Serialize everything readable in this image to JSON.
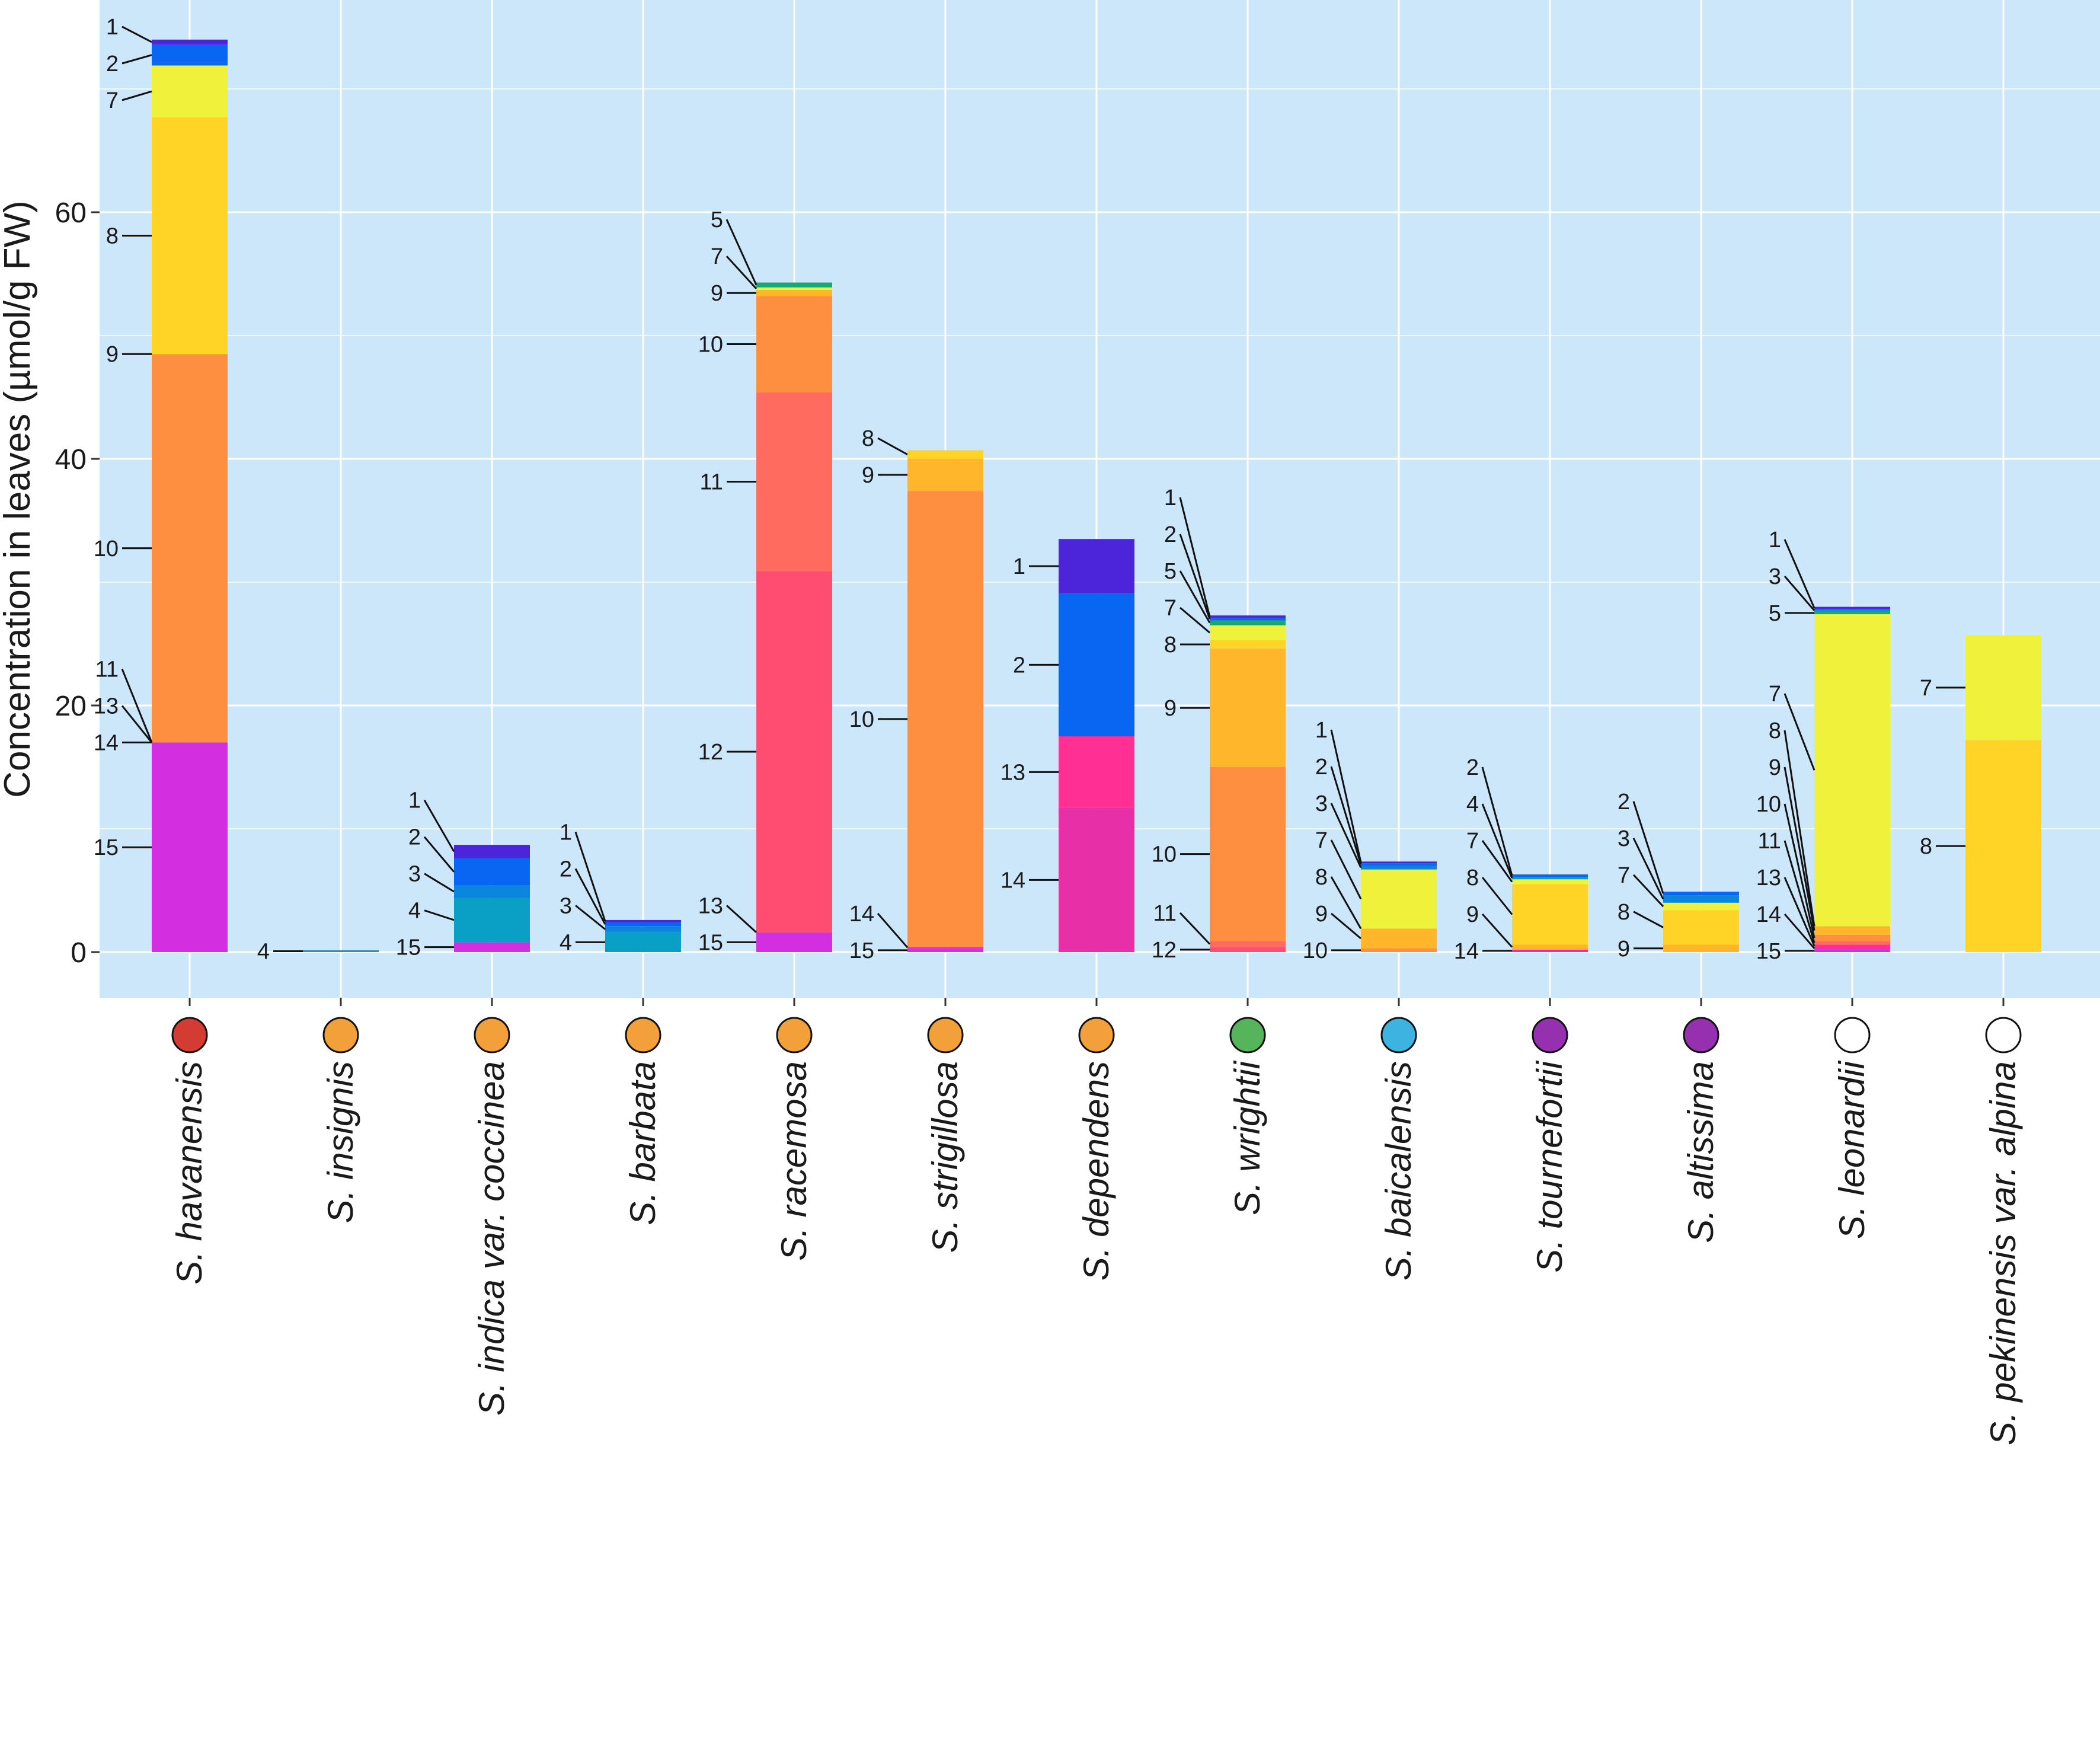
{
  "chart_data": {
    "type": "bar",
    "stacked": true,
    "ylabel": "Concentration in leaves (µmol/g FW)",
    "xlabel": "",
    "ylim": [
      -3.6,
      77
    ],
    "yticks": [
      0,
      20,
      40,
      60
    ],
    "grid": true,
    "legend": "none",
    "colors": {
      "background": "#cce6fa",
      "grid": "#ffffff",
      "compounds": {
        "1": "#4c25db",
        "2": "#0866f2",
        "3": "#0a86de",
        "4": "#0aa0c6",
        "5": "#19a873",
        "7": "#eef23a",
        "8": "#ffd426",
        "9": "#ffb62b",
        "10": "#ff8f40",
        "11": "#ff6b5e",
        "12": "#ff4d72",
        "13": "#ff2f93",
        "14": "#e72fa7",
        "15": "#d12fe0"
      }
    },
    "categories": [
      {
        "name": "S. havanensis",
        "marker": "#d33b33",
        "segments": [
          {
            "compound": "15",
            "value": 17.0
          },
          {
            "compound": "14",
            "value": 0.0
          },
          {
            "compound": "13",
            "value": 0.0
          },
          {
            "compound": "11",
            "value": 0.0
          },
          {
            "compound": "10",
            "value": 31.5
          },
          {
            "compound": "9",
            "value": 0.0
          },
          {
            "compound": "8",
            "value": 19.2
          },
          {
            "compound": "7",
            "value": 4.2
          },
          {
            "compound": "2",
            "value": 1.7
          },
          {
            "compound": "1",
            "value": 0.4
          }
        ]
      },
      {
        "name": "S. insignis",
        "marker": "#f2a03a",
        "segments": [
          {
            "compound": "4",
            "value": 0.15
          }
        ]
      },
      {
        "name": "S. indica var. coccinea",
        "marker": "#f2a03a",
        "segments": [
          {
            "compound": "15",
            "value": 0.8
          },
          {
            "compound": "4",
            "value": 3.6
          },
          {
            "compound": "3",
            "value": 1.0
          },
          {
            "compound": "2",
            "value": 2.2
          },
          {
            "compound": "1",
            "value": 1.1
          }
        ]
      },
      {
        "name": "S. barbata",
        "marker": "#f2a03a",
        "segments": [
          {
            "compound": "4",
            "value": 1.6
          },
          {
            "compound": "3",
            "value": 0.5
          },
          {
            "compound": "2",
            "value": 0.3
          },
          {
            "compound": "1",
            "value": 0.2
          }
        ]
      },
      {
        "name": "S. racemosa",
        "marker": "#f2a03a",
        "segments": [
          {
            "compound": "15",
            "value": 1.6
          },
          {
            "compound": "13",
            "value": 0.0
          },
          {
            "compound": "12",
            "value": 29.3
          },
          {
            "compound": "11",
            "value": 14.5
          },
          {
            "compound": "10",
            "value": 7.8
          },
          {
            "compound": "9",
            "value": 0.5
          },
          {
            "compound": "7",
            "value": 0.2
          },
          {
            "compound": "5",
            "value": 0.4
          }
        ]
      },
      {
        "name": "S. strigillosa",
        "marker": "#f2a03a",
        "segments": [
          {
            "compound": "15",
            "value": 0.3
          },
          {
            "compound": "14",
            "value": 0.1
          },
          {
            "compound": "10",
            "value": 37.0
          },
          {
            "compound": "9",
            "value": 2.6
          },
          {
            "compound": "8",
            "value": 0.7
          }
        ]
      },
      {
        "name": "S. dependens",
        "marker": "#f2a03a",
        "segments": [
          {
            "compound": "14",
            "value": 11.7
          },
          {
            "compound": "13",
            "value": 5.8
          },
          {
            "compound": "2",
            "value": 11.6
          },
          {
            "compound": "1",
            "value": 4.4
          }
        ]
      },
      {
        "name": "S. wrightii",
        "marker": "#56b45a",
        "segments": [
          {
            "compound": "12",
            "value": 0.4
          },
          {
            "compound": "11",
            "value": 0.5
          },
          {
            "compound": "10",
            "value": 14.1
          },
          {
            "compound": "9",
            "value": 9.6
          },
          {
            "compound": "8",
            "value": 0.7
          },
          {
            "compound": "7",
            "value": 1.2
          },
          {
            "compound": "5",
            "value": 0.4
          },
          {
            "compound": "2",
            "value": 0.2
          },
          {
            "compound": "1",
            "value": 0.2
          }
        ]
      },
      {
        "name": "S. baicalensis",
        "marker": "#3db3e0",
        "segments": [
          {
            "compound": "10",
            "value": 0.3
          },
          {
            "compound": "9",
            "value": 1.6
          },
          {
            "compound": "8",
            "value": 0.0
          },
          {
            "compound": "7",
            "value": 4.8
          },
          {
            "compound": "3",
            "value": 0.3
          },
          {
            "compound": "2",
            "value": 0.2
          },
          {
            "compound": "1",
            "value": 0.1
          }
        ]
      },
      {
        "name": "S. tournefortii",
        "marker": "#9530b0",
        "segments": [
          {
            "compound": "14",
            "value": 0.2
          },
          {
            "compound": "9",
            "value": 0.4
          },
          {
            "compound": "8",
            "value": 4.9
          },
          {
            "compound": "7",
            "value": 0.4
          },
          {
            "compound": "4",
            "value": 0.2
          },
          {
            "compound": "2",
            "value": 0.2
          }
        ]
      },
      {
        "name": "S. altissima",
        "marker": "#9530b0",
        "segments": [
          {
            "compound": "9",
            "value": 0.6
          },
          {
            "compound": "8",
            "value": 2.8
          },
          {
            "compound": "7",
            "value": 0.6
          },
          {
            "compound": "3",
            "value": 0.6
          },
          {
            "compound": "2",
            "value": 0.3
          }
        ]
      },
      {
        "name": "S. leonardii",
        "marker": "#ffffff",
        "segments": [
          {
            "compound": "15",
            "value": 0.2
          },
          {
            "compound": "14",
            "value": 0.2
          },
          {
            "compound": "13",
            "value": 0.2
          },
          {
            "compound": "11",
            "value": 0.3
          },
          {
            "compound": "10",
            "value": 0.5
          },
          {
            "compound": "9",
            "value": 0.7
          },
          {
            "compound": "8",
            "value": 0.0
          },
          {
            "compound": "7",
            "value": 25.3
          },
          {
            "compound": "5",
            "value": 0.2
          },
          {
            "compound": "3",
            "value": 0.2
          },
          {
            "compound": "1",
            "value": 0.2
          }
        ]
      },
      {
        "name": "S. pekinensis var. alpina",
        "marker": "#ffffff",
        "segments": [
          {
            "compound": "8",
            "value": 17.2
          },
          {
            "compound": "7",
            "value": 8.5
          }
        ]
      }
    ]
  }
}
